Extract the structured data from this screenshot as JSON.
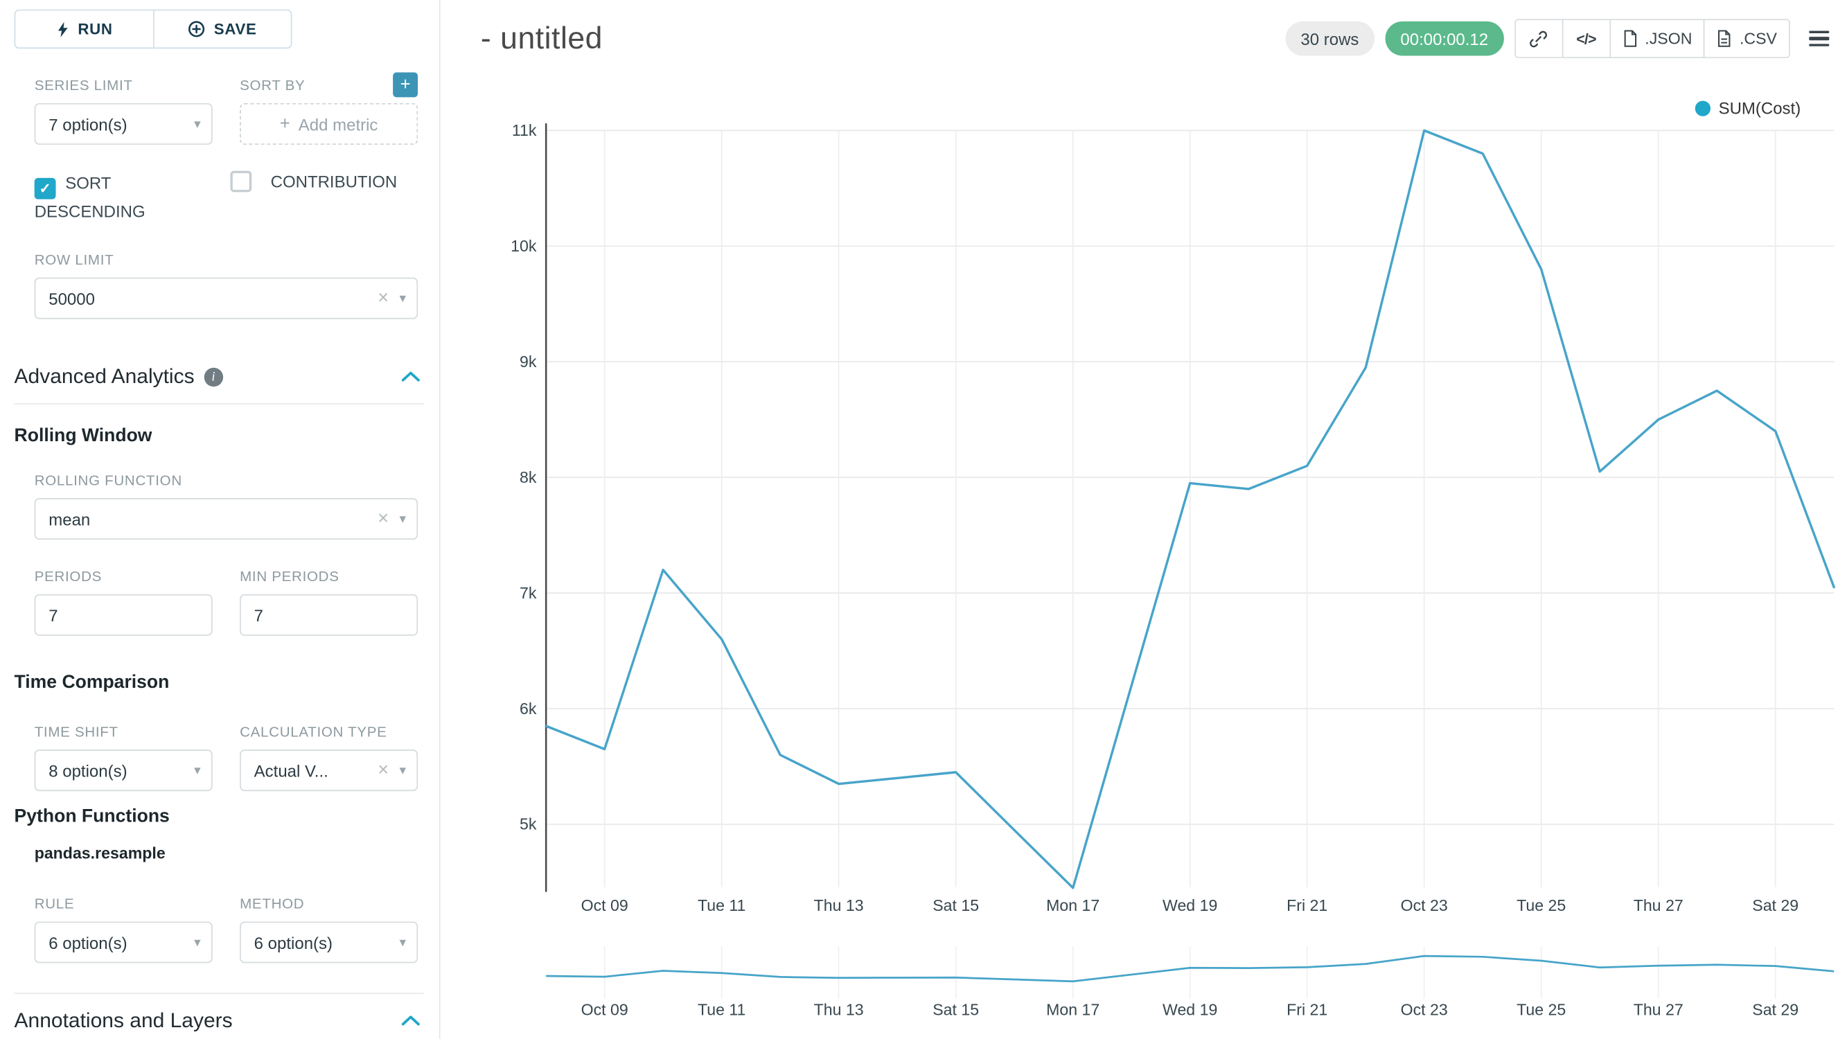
{
  "colors": {
    "accent": "#20A7C9",
    "line": "#47A4C9",
    "timer_badge": "#5BB98C",
    "add_button": "#3D95B5"
  },
  "icons": {
    "plus": "+",
    "clear": "×",
    "check": "✓",
    "caret_down": "▾",
    "info": "i",
    "code": "</>"
  },
  "sidebar": {
    "run_label": "RUN",
    "save_label": "SAVE",
    "series_limit": {
      "label": "SERIES LIMIT",
      "value": "7 option(s)"
    },
    "sort_by": {
      "label": "SORT BY",
      "placeholder": "Add metric"
    },
    "sort_descending": {
      "label": "SORT DESCENDING",
      "checked": true
    },
    "contribution": {
      "label": "CONTRIBUTION",
      "checked": false
    },
    "row_limit": {
      "label": "ROW LIMIT",
      "value": "50000"
    },
    "advanced_analytics": {
      "title": "Advanced Analytics"
    },
    "rolling_window": {
      "title": "Rolling Window",
      "rolling_function": {
        "label": "ROLLING FUNCTION",
        "value": "mean"
      },
      "periods": {
        "label": "PERIODS",
        "value": "7"
      },
      "min_periods": {
        "label": "MIN PERIODS",
        "value": "7"
      }
    },
    "time_comparison": {
      "title": "Time Comparison",
      "time_shift": {
        "label": "TIME SHIFT",
        "value": "8 option(s)"
      },
      "calculation_type": {
        "label": "CALCULATION TYPE",
        "value": "Actual V..."
      }
    },
    "python_functions": {
      "title": "Python Functions",
      "subtitle": "pandas.resample",
      "rule": {
        "label": "RULE",
        "value": "6 option(s)"
      },
      "method": {
        "label": "METHOD",
        "value": "6 option(s)"
      }
    },
    "annotations": {
      "title": "Annotations and Layers"
    }
  },
  "header": {
    "title": "- untitled",
    "rows_badge": "30 rows",
    "timer_badge": "00:00:00.12",
    "json_label": ".JSON",
    "csv_label": ".CSV"
  },
  "chart_data": {
    "type": "line",
    "title": "- untitled",
    "x": [
      "Oct 08",
      "Oct 09",
      "Oct 10",
      "Oct 11",
      "Oct 12",
      "Oct 13",
      "Oct 14",
      "Oct 15",
      "Oct 16",
      "Oct 17",
      "Oct 18",
      "Oct 19",
      "Oct 20",
      "Oct 21",
      "Oct 22",
      "Oct 23",
      "Oct 24",
      "Oct 25",
      "Oct 26",
      "Oct 27",
      "Oct 28",
      "Oct 29",
      "Oct 30"
    ],
    "series": [
      {
        "name": "SUM(Cost)",
        "values": [
          5850,
          5650,
          7200,
          6600,
          5600,
          5350,
          5400,
          5450,
          4950,
          4450,
          6200,
          7950,
          7900,
          8100,
          8950,
          11000,
          10800,
          9800,
          8050,
          8500,
          8750,
          8400,
          7050
        ]
      }
    ],
    "x_ticks": [
      "Oct 09",
      "Tue 11",
      "Thu 13",
      "Sat 15",
      "Mon 17",
      "Wed 19",
      "Fri 21",
      "Oct 23",
      "Tue 25",
      "Thu 27",
      "Sat 29"
    ],
    "tick_indices": [
      1,
      3,
      5,
      7,
      9,
      11,
      13,
      15,
      17,
      19,
      21
    ],
    "y_ticks": [
      {
        "label": "5k",
        "value": 5000
      },
      {
        "label": "6k",
        "value": 6000
      },
      {
        "label": "7k",
        "value": 7000
      },
      {
        "label": "8k",
        "value": 8000
      },
      {
        "label": "9k",
        "value": 9000
      },
      {
        "label": "10k",
        "value": 10000
      },
      {
        "label": "11k",
        "value": 11000
      }
    ],
    "ylim": [
      4400,
      11200
    ],
    "grid": true,
    "legend_position": "top-right",
    "has_preview_strip": true
  }
}
